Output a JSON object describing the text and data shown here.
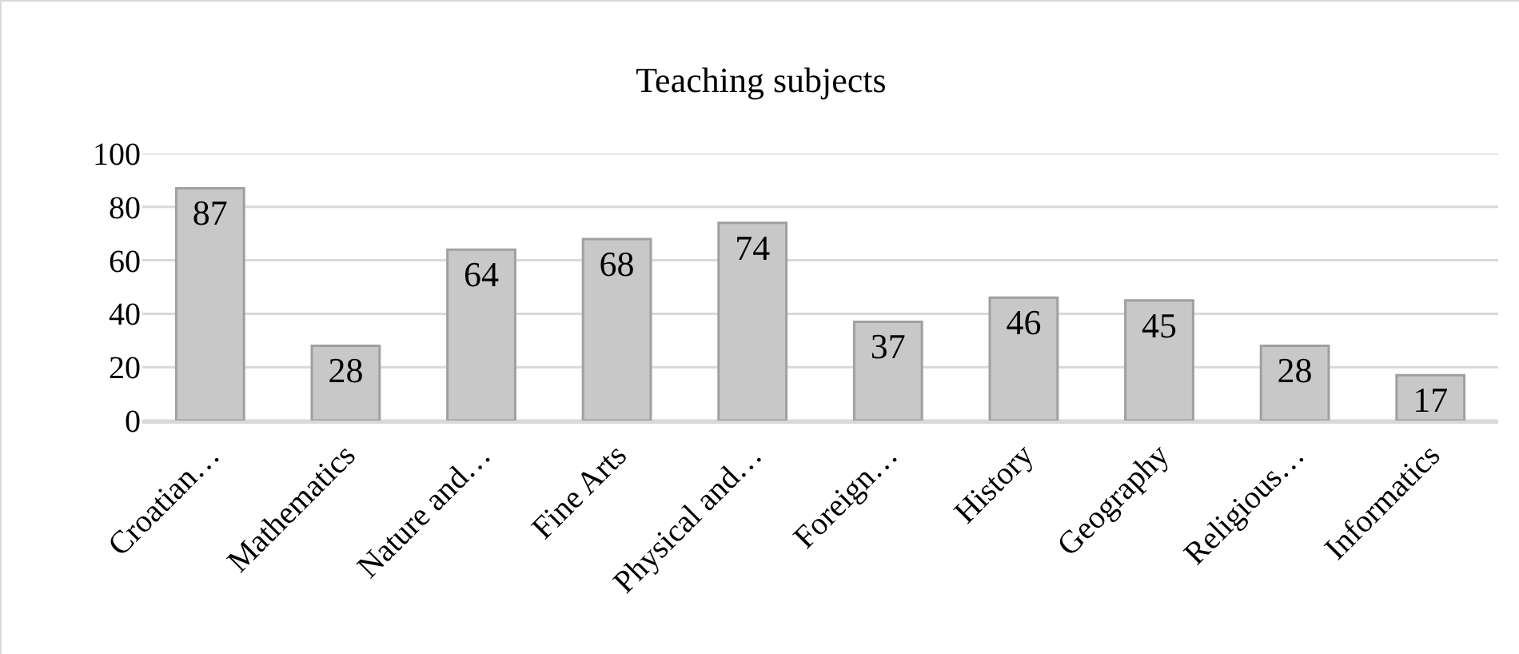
{
  "chart_data": {
    "type": "bar",
    "title": "Teaching subjects",
    "categories": [
      "Croatian…",
      "Mathematics",
      "Nature and…",
      "Fine Arts",
      "Physical and…",
      "Foreign…",
      "History",
      "Geography",
      "Religious…",
      "Informatics"
    ],
    "values": [
      87,
      28,
      64,
      68,
      74,
      37,
      46,
      45,
      28,
      17
    ],
    "color": "#c8c8c8",
    "ylim": [
      0,
      100
    ],
    "yticks": [
      0,
      20,
      40,
      60,
      80,
      100
    ],
    "grid": "y",
    "data_labels": true
  }
}
